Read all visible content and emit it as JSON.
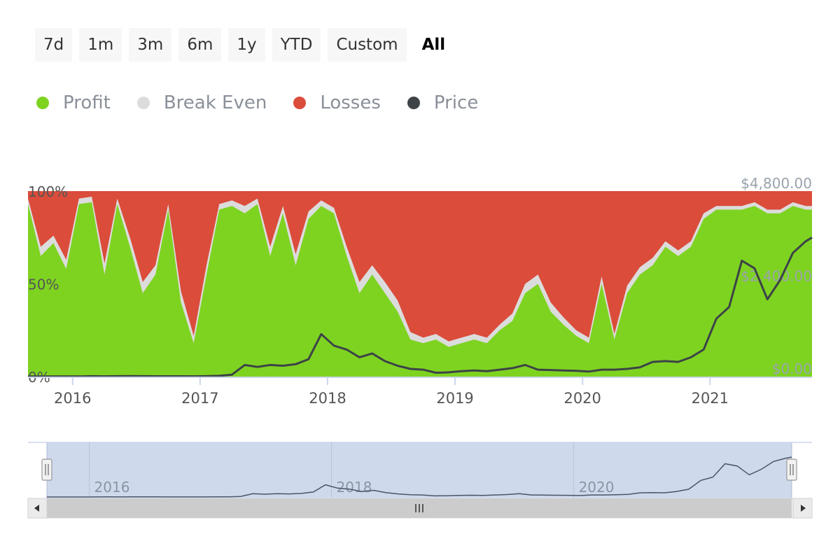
{
  "range_buttons": [
    {
      "label": "7d"
    },
    {
      "label": "1m"
    },
    {
      "label": "3m"
    },
    {
      "label": "6m"
    },
    {
      "label": "1y"
    },
    {
      "label": "YTD"
    },
    {
      "label": "Custom"
    },
    {
      "label": "All"
    }
  ],
  "active_range": "All",
  "legend": [
    {
      "label": "Profit",
      "color": "#7ed321"
    },
    {
      "label": "Break Even",
      "color": "#dcdcdc"
    },
    {
      "label": "Losses",
      "color": "#db4c3b"
    },
    {
      "label": "Price",
      "color": "#3d4347"
    }
  ],
  "chart_data": {
    "type": "area",
    "title": "",
    "xlabel": "",
    "ylabel": "",
    "x_range": [
      2015.65,
      2021.8
    ],
    "x_ticks": [
      2016,
      2017,
      2018,
      2019,
      2020,
      2021
    ],
    "x_tick_labels": [
      "2016",
      "2017",
      "2018",
      "2019",
      "2020",
      "2021"
    ],
    "y_left_ticks": [
      "0%",
      "50%",
      "100%"
    ],
    "y_right_ticks": [
      "$0.00",
      "$2,400.00",
      "$4,800.00"
    ],
    "ylim_percent": [
      0,
      100
    ],
    "ylim_price": [
      0,
      4800
    ],
    "x": [
      2015.65,
      2015.75,
      2015.85,
      2015.95,
      2016.05,
      2016.15,
      2016.25,
      2016.35,
      2016.45,
      2016.55,
      2016.65,
      2016.75,
      2016.85,
      2016.95,
      2017.05,
      2017.15,
      2017.25,
      2017.35,
      2017.45,
      2017.55,
      2017.65,
      2017.75,
      2017.85,
      2017.95,
      2018.05,
      2018.15,
      2018.25,
      2018.35,
      2018.45,
      2018.55,
      2018.65,
      2018.75,
      2018.85,
      2018.95,
      2019.05,
      2019.15,
      2019.25,
      2019.35,
      2019.45,
      2019.55,
      2019.65,
      2019.75,
      2019.85,
      2019.95,
      2020.05,
      2020.15,
      2020.25,
      2020.35,
      2020.45,
      2020.55,
      2020.65,
      2020.75,
      2020.85,
      2020.95,
      2021.05,
      2021.15,
      2021.25,
      2021.35,
      2021.45,
      2021.55,
      2021.65,
      2021.75,
      2021.8
    ],
    "series": [
      {
        "name": "Profit",
        "values": [
          93,
          65,
          72,
          58,
          93,
          94,
          55,
          93,
          70,
          45,
          55,
          90,
          40,
          18,
          55,
          90,
          92,
          88,
          93,
          65,
          88,
          60,
          85,
          92,
          88,
          65,
          45,
          55,
          45,
          35,
          20,
          18,
          20,
          16,
          18,
          20,
          18,
          25,
          30,
          45,
          50,
          35,
          28,
          22,
          18,
          50,
          20,
          45,
          55,
          60,
          70,
          65,
          70,
          85,
          90,
          90,
          90,
          92,
          88,
          88,
          92,
          90,
          90
        ]
      },
      {
        "name": "Break Even",
        "values": [
          3,
          5,
          4,
          5,
          3,
          3,
          6,
          3,
          5,
          6,
          5,
          3,
          6,
          4,
          5,
          3,
          3,
          4,
          3,
          5,
          4,
          6,
          4,
          3,
          3,
          5,
          6,
          5,
          6,
          6,
          4,
          3,
          3,
          3,
          3,
          3,
          3,
          3,
          4,
          5,
          5,
          5,
          4,
          3,
          3,
          4,
          3,
          4,
          4,
          4,
          3,
          3,
          3,
          3,
          2,
          2,
          2,
          2,
          2,
          2,
          2,
          2,
          2
        ]
      },
      {
        "name": "Losses",
        "values": [
          4,
          30,
          24,
          37,
          4,
          3,
          39,
          4,
          25,
          49,
          40,
          7,
          54,
          78,
          40,
          7,
          5,
          8,
          4,
          30,
          8,
          34,
          11,
          5,
          9,
          30,
          49,
          40,
          49,
          59,
          76,
          79,
          77,
          81,
          79,
          77,
          79,
          72,
          66,
          50,
          45,
          60,
          68,
          75,
          79,
          46,
          77,
          51,
          41,
          36,
          27,
          32,
          27,
          12,
          8,
          8,
          8,
          6,
          10,
          10,
          6,
          8,
          8
        ]
      },
      {
        "name": "Price",
        "values": [
          1,
          1,
          3,
          3,
          5,
          10,
          8,
          11,
          12,
          10,
          9,
          9,
          9,
          8,
          10,
          20,
          50,
          300,
          250,
          300,
          280,
          320,
          450,
          1100,
          800,
          700,
          500,
          600,
          400,
          280,
          200,
          180,
          100,
          110,
          140,
          160,
          140,
          180,
          220,
          300,
          180,
          170,
          160,
          150,
          130,
          180,
          180,
          200,
          240,
          380,
          400,
          380,
          500,
          700,
          1500,
          1800,
          3000,
          2800,
          2000,
          2500,
          3200,
          3500,
          3600
        ]
      }
    ]
  },
  "navigator": {
    "x_tick_labels": [
      "2016",
      "2018",
      "2020"
    ],
    "scroll_left_icon": "arrow-left-icon",
    "scroll_right_icon": "arrow-right-icon",
    "scroll_thumb_icon": "grip-icon",
    "handle_icon": "drag-handle-icon"
  }
}
